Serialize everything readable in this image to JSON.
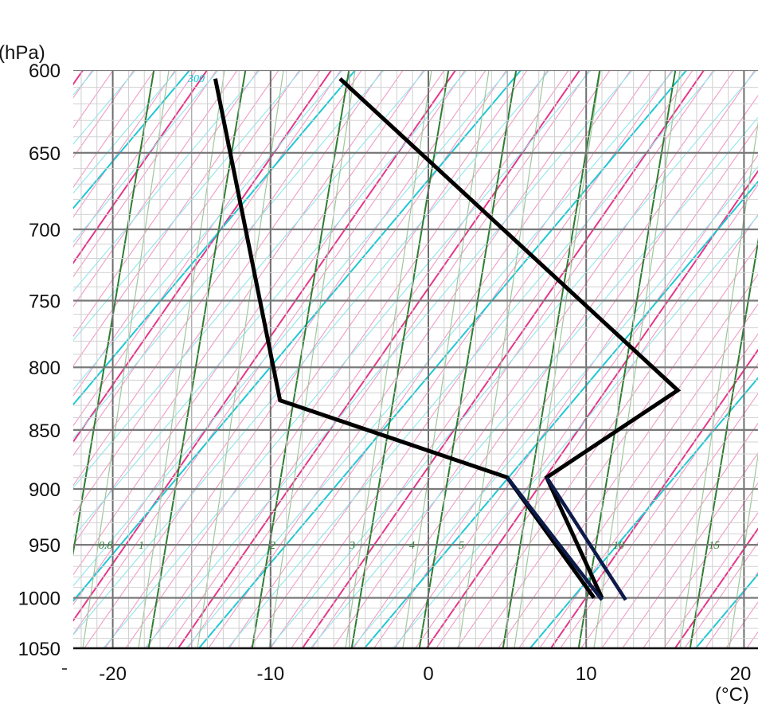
{
  "chart_data": {
    "type": "line",
    "title": "",
    "xlabel": "(°C)",
    "ylabel": "(hPa)",
    "x_axis": {
      "range": [
        -22,
        20.5
      ],
      "ticks": [
        -20,
        -10,
        0,
        10,
        20
      ]
    },
    "y_axis": {
      "scale": "log",
      "range": [
        1050,
        600
      ],
      "ticks": [
        600,
        650,
        700,
        750,
        800,
        850,
        900,
        950,
        1000,
        1050
      ]
    },
    "grid": true,
    "mixing_ratio_labels": [
      "0.8",
      "1",
      "2",
      "3",
      "4",
      "5",
      "10",
      "15"
    ],
    "top_label": "300",
    "series": [
      {
        "role": "temperature",
        "color": "#000000",
        "points": [
          [
            11.0,
            1000
          ],
          [
            7.5,
            890
          ],
          [
            15.8,
            818
          ],
          [
            -5.6,
            605
          ]
        ]
      },
      {
        "role": "dewpoint",
        "color": "#000000",
        "points": [
          [
            10.5,
            1000
          ],
          [
            5.0,
            890
          ],
          [
            -9.4,
            826
          ],
          [
            -13.5,
            605
          ]
        ]
      },
      {
        "role": "lower-segment",
        "color": "#0d1b4a",
        "points": [
          [
            5.0,
            890
          ],
          [
            11.0,
            1002
          ]
        ]
      },
      {
        "role": "lower-segment",
        "color": "#0d1b4a",
        "points": [
          [
            7.5,
            890
          ],
          [
            12.5,
            1002
          ]
        ]
      }
    ]
  }
}
